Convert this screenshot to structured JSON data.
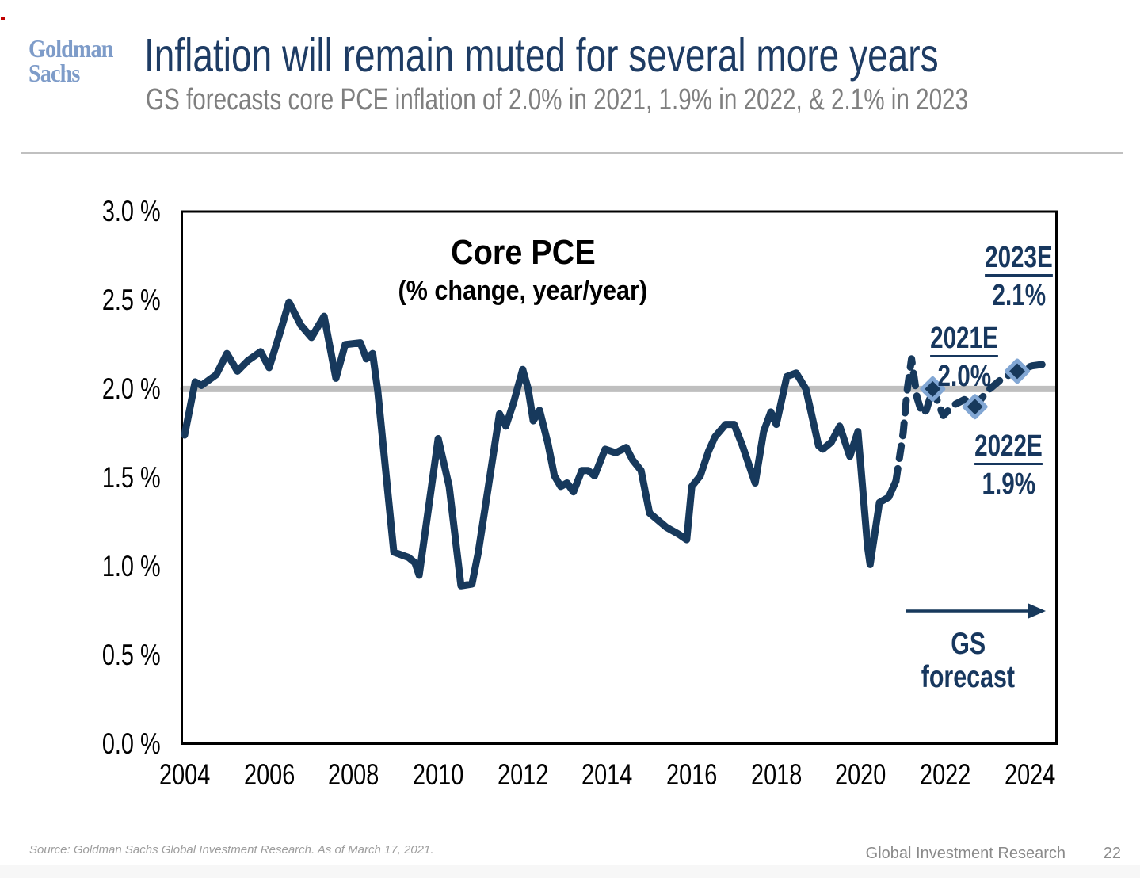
{
  "header": {
    "logo_line1": "Goldman",
    "logo_line2": "Sachs",
    "title": "Inflation will remain muted for several more years",
    "subtitle": "GS forecasts core PCE inflation of 2.0% in 2021, 1.9% in 2022, & 2.1% in 2023"
  },
  "footer": {
    "source": "Source: Goldman Sachs Global Investment Research. As of March 17, 2021.",
    "brand": "Global Investment Research",
    "page_number": "22"
  },
  "colors": {
    "line_navy": "#17395c",
    "marker_stroke": "#82a7d4",
    "reference_gray": "#bfbfbf",
    "title_navy": "#1e3c64",
    "logo_blue": "#7e9cc9",
    "annotation_navy": "#17375e",
    "accent_red": "#c00000"
  },
  "chart_data": {
    "type": "line",
    "title": "Core PCE",
    "subtitle": "(% change, year/year)",
    "x_axis": {
      "ticks": [
        2004,
        2006,
        2008,
        2010,
        2012,
        2014,
        2016,
        2018,
        2020,
        2022,
        2024
      ],
      "range": [
        2004,
        2024.7
      ],
      "grid": false
    },
    "y_axis": {
      "tick_labels": [
        "3.0 %",
        "2.5 %",
        "2.0 %",
        "1.5 %",
        "1.0 %",
        "0.5 %",
        "0.0 %"
      ],
      "tick_values": [
        3.0,
        2.5,
        2.0,
        1.5,
        1.0,
        0.5,
        0.0
      ],
      "range": [
        0,
        3
      ],
      "grid": false
    },
    "reference_line": {
      "value": 2.0,
      "color": "#bfbfbf"
    },
    "series": [
      {
        "name": "Core PCE actual",
        "style": "solid",
        "color": "#17395c",
        "points": [
          [
            2004.0,
            1.74
          ],
          [
            2004.25,
            2.04
          ],
          [
            2004.4,
            2.02
          ],
          [
            2004.75,
            2.08
          ],
          [
            2005.0,
            2.2
          ],
          [
            2005.25,
            2.1
          ],
          [
            2005.5,
            2.16
          ],
          [
            2005.8,
            2.21
          ],
          [
            2006.0,
            2.12
          ],
          [
            2006.25,
            2.31
          ],
          [
            2006.47,
            2.49
          ],
          [
            2006.75,
            2.36
          ],
          [
            2007.0,
            2.29
          ],
          [
            2007.3,
            2.41
          ],
          [
            2007.58,
            2.06
          ],
          [
            2007.8,
            2.25
          ],
          [
            2008.16,
            2.26
          ],
          [
            2008.3,
            2.17
          ],
          [
            2008.45,
            2.2
          ],
          [
            2008.57,
            1.99
          ],
          [
            2008.95,
            1.08
          ],
          [
            2009.3,
            1.05
          ],
          [
            2009.45,
            1.02
          ],
          [
            2009.55,
            0.95
          ],
          [
            2010.0,
            1.72
          ],
          [
            2010.26,
            1.45
          ],
          [
            2010.54,
            0.89
          ],
          [
            2010.8,
            0.9
          ],
          [
            2010.95,
            1.08
          ],
          [
            2011.45,
            1.86
          ],
          [
            2011.6,
            1.79
          ],
          [
            2011.78,
            1.92
          ],
          [
            2012.0,
            2.11
          ],
          [
            2012.13,
            2.0
          ],
          [
            2012.25,
            1.82
          ],
          [
            2012.4,
            1.88
          ],
          [
            2012.6,
            1.69
          ],
          [
            2012.75,
            1.51
          ],
          [
            2012.9,
            1.45
          ],
          [
            2013.05,
            1.47
          ],
          [
            2013.2,
            1.42
          ],
          [
            2013.4,
            1.54
          ],
          [
            2013.55,
            1.54
          ],
          [
            2013.7,
            1.51
          ],
          [
            2013.95,
            1.66
          ],
          [
            2014.2,
            1.64
          ],
          [
            2014.45,
            1.67
          ],
          [
            2014.6,
            1.6
          ],
          [
            2014.8,
            1.54
          ],
          [
            2015.0,
            1.3
          ],
          [
            2015.4,
            1.22
          ],
          [
            2015.7,
            1.18
          ],
          [
            2015.88,
            1.15
          ],
          [
            2016.0,
            1.45
          ],
          [
            2016.2,
            1.51
          ],
          [
            2016.4,
            1.65
          ],
          [
            2016.55,
            1.73
          ],
          [
            2016.8,
            1.8
          ],
          [
            2017.0,
            1.8
          ],
          [
            2017.2,
            1.68
          ],
          [
            2017.5,
            1.47
          ],
          [
            2017.7,
            1.76
          ],
          [
            2017.87,
            1.87
          ],
          [
            2018.0,
            1.8
          ],
          [
            2018.25,
            2.07
          ],
          [
            2018.47,
            2.09
          ],
          [
            2018.7,
            2.0
          ],
          [
            2019.0,
            1.68
          ],
          [
            2019.1,
            1.66
          ],
          [
            2019.3,
            1.7
          ],
          [
            2019.5,
            1.79
          ],
          [
            2019.74,
            1.62
          ],
          [
            2019.93,
            1.76
          ],
          [
            2020.16,
            1.11
          ],
          [
            2020.22,
            1.01
          ],
          [
            2020.44,
            1.36
          ],
          [
            2020.66,
            1.39
          ],
          [
            2020.83,
            1.48
          ]
        ]
      },
      {
        "name": "GS forecast",
        "style": "dashed",
        "color": "#17395c",
        "points": [
          [
            2020.83,
            1.48
          ],
          [
            2021.0,
            1.75
          ],
          [
            2021.1,
            2.0
          ],
          [
            2021.2,
            2.17
          ],
          [
            2021.33,
            1.95
          ],
          [
            2021.45,
            1.86
          ],
          [
            2021.55,
            1.88
          ],
          [
            2021.7,
            2.0
          ],
          [
            2021.95,
            1.85
          ],
          [
            2022.2,
            1.91
          ],
          [
            2022.45,
            1.94
          ],
          [
            2022.7,
            1.9
          ],
          [
            2023.0,
            1.99
          ],
          [
            2023.35,
            2.06
          ],
          [
            2023.7,
            2.1
          ],
          [
            2024.05,
            2.13
          ],
          [
            2024.35,
            2.14
          ]
        ]
      }
    ],
    "markers": [
      {
        "x": 2021.7,
        "y": 2.0,
        "label": "2021E",
        "value_label": "2.0%"
      },
      {
        "x": 2022.7,
        "y": 1.9,
        "label": "2022E",
        "value_label": "1.9%"
      },
      {
        "x": 2023.7,
        "y": 2.1,
        "label": "2023E",
        "value_label": "2.1%"
      }
    ],
    "annotations": {
      "gs_arrow_line1": "GS",
      "gs_arrow_line2": "forecast"
    },
    "legend": "none"
  }
}
